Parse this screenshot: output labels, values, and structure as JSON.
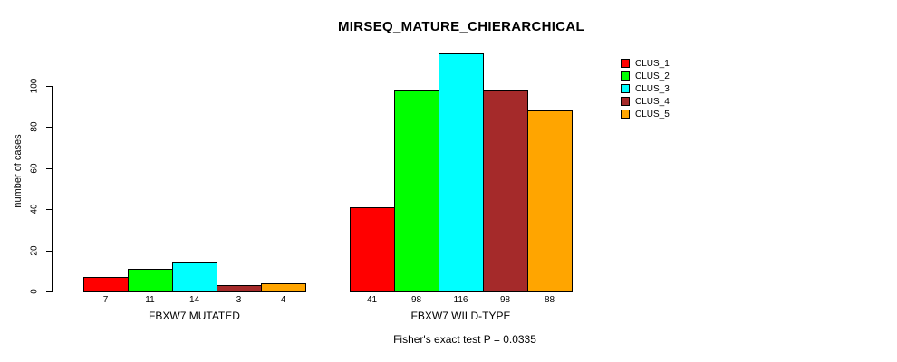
{
  "title": "MIRSEQ_MATURE_CHIERARCHICAL",
  "footer": "Fisher's exact test P = 0.0335",
  "chart_data": {
    "type": "bar",
    "title": "MIRSEQ_MATURE_CHIERARCHICAL",
    "ylabel": "number of cases",
    "xlabel": "",
    "yticks": [
      0,
      20,
      40,
      60,
      80,
      100
    ],
    "ylim": [
      0,
      116
    ],
    "grid": false,
    "legend_position": "top-right",
    "series_names": [
      "CLUS_1",
      "CLUS_2",
      "CLUS_3",
      "CLUS_4",
      "CLUS_5"
    ],
    "colors": [
      "#FF0000",
      "#00FF00",
      "#00FFFF",
      "#A52A2A",
      "#FFA500"
    ],
    "groups": [
      {
        "label": "FBXW7 MUTATED",
        "values": [
          7,
          11,
          14,
          3,
          4
        ]
      },
      {
        "label": "FBXW7 WILD-TYPE",
        "values": [
          41,
          98,
          116,
          98,
          88
        ]
      }
    ],
    "annotation": "Fisher's exact test P = 0.0335"
  },
  "legend": {
    "items": [
      {
        "label": "CLUS_1",
        "color": "#FF0000"
      },
      {
        "label": "CLUS_2",
        "color": "#00FF00"
      },
      {
        "label": "CLUS_3",
        "color": "#00FFFF"
      },
      {
        "label": "CLUS_4",
        "color": "#A52A2A"
      },
      {
        "label": "CLUS_5",
        "color": "#FFA500"
      }
    ]
  }
}
